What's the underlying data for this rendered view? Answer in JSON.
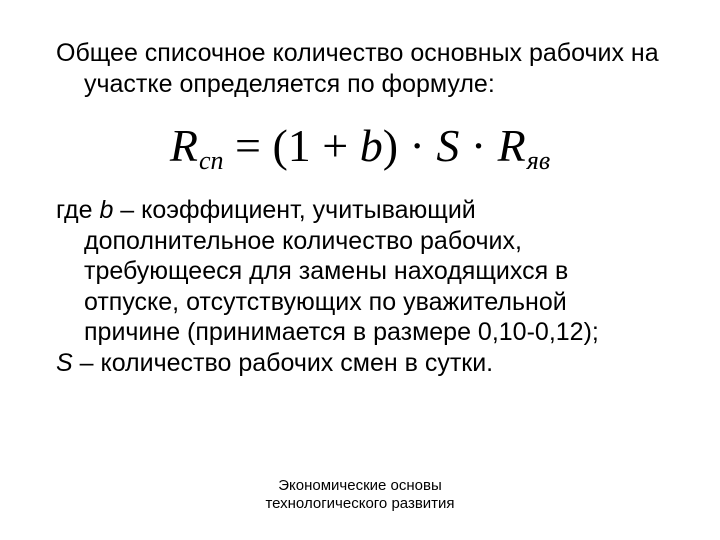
{
  "colors": {
    "text": "#000000",
    "background": "#ffffff"
  },
  "typography": {
    "body_font": "Arial",
    "body_size_pt": 19,
    "formula_font": "Times New Roman",
    "formula_size_pt": 34,
    "footer_size_pt": 11
  },
  "intro": "Общее списочное количество основных рабочих на участке определяется по формуле:",
  "formula": {
    "lhs_var": "R",
    "lhs_sub": "сп",
    "eq": " = ",
    "open": "(1 + ",
    "b": "b",
    "close": ") · ",
    "s": "S",
    "mid": " · ",
    "rhs_var": "R",
    "rhs_sub": "яв"
  },
  "expl_b": {
    "lead": "где ",
    "var": "b",
    "text": " – коэффициент, учитывающий дополнительное количество рабочих, требующееся для замены находящихся в отпуске, отсутствующих по уважительной причине (принимается в размере 0,10-0,12);"
  },
  "expl_s": {
    "var": "S",
    "text": " – количество рабочих смен в сутки."
  },
  "footer": {
    "line1": "Экономические основы",
    "line2": "технологического развития"
  }
}
